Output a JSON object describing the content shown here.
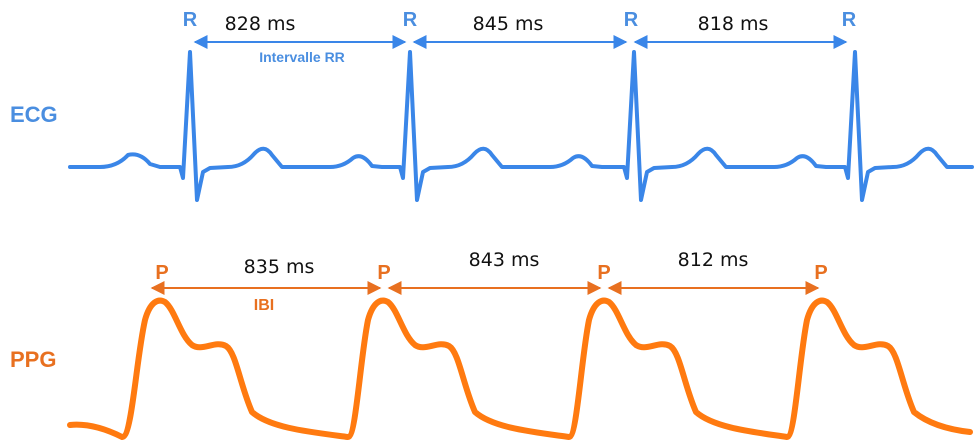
{
  "colors": {
    "ecg": "#3a86e8",
    "ecg_label": "#4a8ee0",
    "ppg": "#ff7a10",
    "ppg_label": "#e87020",
    "text": "#111111"
  },
  "ecg": {
    "label": "ECG",
    "peak_label": "R",
    "interval_caption": "Intervalle RR",
    "intervals": [
      "828 ms",
      "845 ms",
      "818 ms"
    ]
  },
  "ppg": {
    "label": "PPG",
    "peak_label": "P",
    "interval_caption": "IBI",
    "intervals": [
      "835 ms",
      "843 ms",
      "812 ms"
    ]
  }
}
